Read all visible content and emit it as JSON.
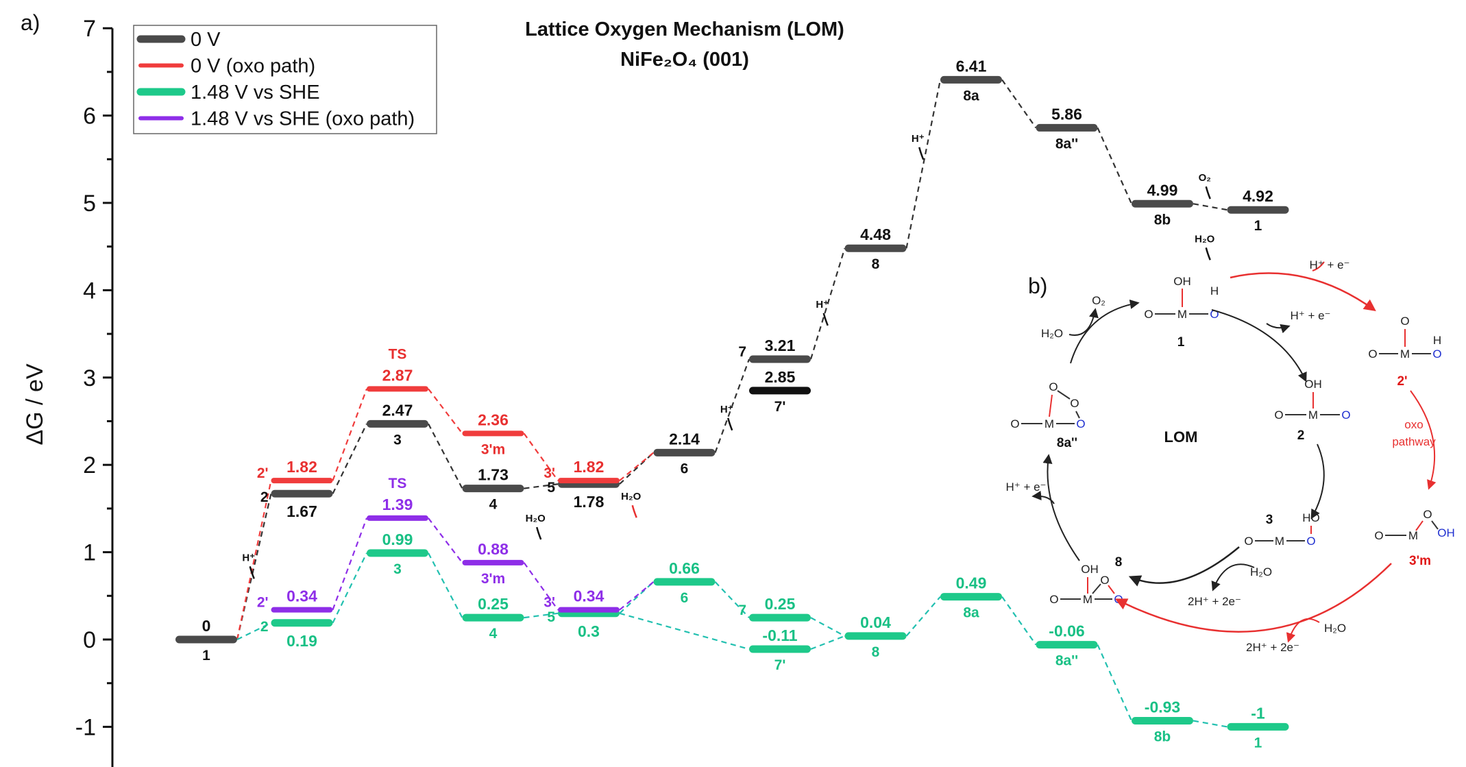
{
  "panel_labels": {
    "a": "a)",
    "b": "b)"
  },
  "chart_data": {
    "type": "line",
    "subtype": "free-energy-level-diagram",
    "title": "Lattice Oxygen Mechanism (LOM)",
    "subtitle": "NiFe₂O₄ (001)",
    "ylabel": "ΔG / eV",
    "ylim": [
      -1.4,
      7
    ],
    "yticks": [
      "-1",
      "0",
      "1",
      "2",
      "3",
      "4",
      "5",
      "6",
      "7"
    ],
    "grid": false,
    "legend_placement": "top-left",
    "legend": [
      {
        "name": "0 V",
        "color": "#4a4a4a"
      },
      {
        "name": "0 V (oxo path)",
        "color": "#f03c3c"
      },
      {
        "name": "1.48 V vs SHE",
        "color": "#1ec98a"
      },
      {
        "name": "1.48 V vs SHE (oxo path)",
        "color": "#8e2ee8"
      }
    ],
    "series": [
      {
        "name": "0 V",
        "color": "#4a4a4a",
        "text_color": "#111111",
        "levels": [
          {
            "step": 1,
            "value": 0,
            "value_text": "0",
            "state": "1",
            "style": "above"
          },
          {
            "step": 2,
            "value": 1.67,
            "value_text": "1.67",
            "state": "2",
            "style": "left-below"
          },
          {
            "step": 3,
            "value": 2.47,
            "value_text": "2.47",
            "state": "3",
            "style": "above"
          },
          {
            "step": 4,
            "value": 1.73,
            "value_text": "1.73",
            "state": "4",
            "style": "above"
          },
          {
            "step": 5,
            "value": 1.78,
            "value_text": "1.78",
            "state": "5",
            "style": "left-below"
          },
          {
            "step": 6,
            "value": 2.14,
            "value_text": "2.14",
            "state": "6",
            "style": "above"
          },
          {
            "step": 7,
            "value": 3.21,
            "value_text": "3.21",
            "state": "7",
            "style": "left-above"
          },
          {
            "step": 7,
            "value": 2.85,
            "value_text": "2.85",
            "state": "7'",
            "style": "above",
            "color": "#111111"
          },
          {
            "step": 8,
            "value": 4.48,
            "value_text": "4.48",
            "state": "8",
            "style": "above"
          },
          {
            "step": 9,
            "value": 6.41,
            "value_text": "6.41",
            "state": "8a",
            "style": "above"
          },
          {
            "step": 10,
            "value": 5.86,
            "value_text": "5.86",
            "state": "8a''",
            "style": "above"
          },
          {
            "step": 11,
            "value": 4.99,
            "value_text": "4.99",
            "state": "8b",
            "style": "above"
          },
          {
            "step": 12,
            "value": 4.92,
            "value_text": "4.92",
            "state": "1",
            "style": "above"
          }
        ],
        "links": [
          [
            0,
            1
          ],
          [
            1,
            2
          ],
          [
            2,
            3
          ],
          [
            3,
            4
          ],
          [
            4,
            5
          ],
          [
            5,
            6
          ],
          [
            6,
            8
          ],
          [
            8,
            9
          ],
          [
            9,
            10
          ],
          [
            10,
            11
          ],
          [
            11,
            12
          ]
        ]
      },
      {
        "name": "0 V (oxo path)",
        "color": "#f03c3c",
        "text_color": "#e83030",
        "levels": [
          {
            "step": 2,
            "value": 1.82,
            "value_text": "1.82",
            "state": "2'",
            "style": "left-above"
          },
          {
            "step": 3,
            "value": 2.87,
            "value_text": "2.87",
            "state": "TS",
            "style": "ts"
          },
          {
            "step": 4,
            "value": 2.36,
            "value_text": "2.36",
            "state": "3'm",
            "style": "above"
          },
          {
            "step": 5,
            "value": 1.82,
            "value_text": "1.82",
            "state": "3'",
            "style": "left-above"
          }
        ],
        "links": [
          [
            0,
            1
          ],
          [
            1,
            2
          ],
          [
            2,
            3
          ]
        ]
      },
      {
        "name": "1.48 V vs SHE",
        "color": "#1ec98a",
        "text_color": "#19c085",
        "levels": [
          {
            "step": 2,
            "value": 0.19,
            "value_text": "0.19",
            "state": "2",
            "style": "left-below"
          },
          {
            "step": 3,
            "value": 0.99,
            "value_text": "0.99",
            "state": "3",
            "style": "above"
          },
          {
            "step": 4,
            "value": 0.25,
            "value_text": "0.25",
            "state": "4",
            "style": "above"
          },
          {
            "step": 5,
            "value": 0.3,
            "value_text": "0.3",
            "state": "5",
            "style": "left-below"
          },
          {
            "step": 6,
            "value": 0.66,
            "value_text": "0.66",
            "state": "6",
            "style": "above"
          },
          {
            "step": 7,
            "value": 0.25,
            "value_text": "0.25",
            "state": "7",
            "style": "left-above"
          },
          {
            "step": 7,
            "value": -0.11,
            "value_text": "-0.11",
            "state": "7'",
            "style": "above"
          },
          {
            "step": 8,
            "value": 0.04,
            "value_text": "0.04",
            "state": "8",
            "style": "above"
          },
          {
            "step": 9,
            "value": 0.49,
            "value_text": "0.49",
            "state": "8a",
            "style": "above"
          },
          {
            "step": 10,
            "value": -0.06,
            "value_text": "-0.06",
            "state": "8a''",
            "style": "above"
          },
          {
            "step": 11,
            "value": -0.93,
            "value_text": "-0.93",
            "state": "8b",
            "style": "above"
          },
          {
            "step": 12,
            "value": -1,
            "value_text": "-1",
            "state": "1",
            "style": "above"
          }
        ],
        "links": [
          [
            0,
            1
          ],
          [
            1,
            2
          ],
          [
            2,
            3
          ],
          [
            3,
            4
          ],
          [
            4,
            5
          ],
          [
            3,
            6
          ],
          [
            5,
            7
          ],
          [
            6,
            7
          ],
          [
            7,
            8
          ],
          [
            8,
            9
          ],
          [
            9,
            10
          ],
          [
            10,
            11
          ]
        ]
      },
      {
        "name": "1.48 V vs SHE (oxo path)",
        "color": "#8e2ee8",
        "text_color": "#8e2ee8",
        "levels": [
          {
            "step": 2,
            "value": 0.34,
            "value_text": "0.34",
            "state": "2'",
            "style": "left-above"
          },
          {
            "step": 3,
            "value": 1.39,
            "value_text": "1.39",
            "state": "TS",
            "style": "ts"
          },
          {
            "step": 4,
            "value": 0.88,
            "value_text": "0.88",
            "state": "3'm",
            "style": "above"
          },
          {
            "step": 5,
            "value": 0.34,
            "value_text": "0.34",
            "state": "3'",
            "style": "left-above"
          }
        ],
        "links": [
          [
            0,
            1
          ],
          [
            1,
            2
          ],
          [
            2,
            3
          ]
        ]
      }
    ],
    "cross_links": [
      {
        "from": [
          0,
          0
        ],
        "to": [
          1,
          0
        ],
        "color": "#f03c3c"
      },
      {
        "from": [
          1,
          3
        ],
        "to": [
          0,
          5
        ],
        "color": "#f03c3c"
      },
      {
        "from": [
          0,
          0
        ],
        "to": [
          2,
          0
        ],
        "color": "#1ec98a"
      },
      {
        "from": [
          3,
          3
        ],
        "to": [
          2,
          4
        ],
        "color": "#8e2ee8"
      }
    ],
    "annotations": [
      {
        "text": "H⁺",
        "between_steps": [
          1,
          2
        ],
        "value": 0.9,
        "color": "#111111"
      },
      {
        "text": "H₂O",
        "between_steps": [
          4,
          5
        ],
        "value": 1.35,
        "color": "#111111"
      },
      {
        "text": "H₂O",
        "between_steps": [
          5,
          6
        ],
        "value": 1.6,
        "color": "#e83030"
      },
      {
        "text": "H⁺",
        "between_steps": [
          6,
          7
        ],
        "value": 2.6,
        "color": "#111111"
      },
      {
        "text": "H⁺",
        "between_steps": [
          7,
          8
        ],
        "value": 3.8,
        "color": "#111111"
      },
      {
        "text": "H⁺",
        "between_steps": [
          8,
          9
        ],
        "value": 5.7,
        "color": "#111111"
      },
      {
        "text": "O₂",
        "between_steps": [
          11,
          12
        ],
        "value": 5.25,
        "color": "#111111"
      },
      {
        "text": "H₂O",
        "between_steps": [
          11,
          12
        ],
        "value": 4.55,
        "color": "#111111"
      }
    ]
  },
  "scheme": {
    "center_label": "LOM",
    "species": {
      "s1": {
        "label": "1",
        "top": "OH",
        "h": "H"
      },
      "s2p": {
        "label": "2'",
        "top": "O",
        "h": "H"
      },
      "s2": {
        "label": "2",
        "top": "OH"
      },
      "s3": {
        "label": "3",
        "top": "HO"
      },
      "s3m": {
        "label": "3'm",
        "top": "O",
        "oh": "OH"
      },
      "s8": {
        "label": "8",
        "top": "OH",
        "mid": "O"
      },
      "s8a": {
        "label": "8a''",
        "o1": "O",
        "o2": "O"
      }
    },
    "atoms": {
      "o": "O",
      "m": "M"
    },
    "reagents": {
      "r1": "H⁺ + e⁻",
      "r2": "H⁺ + e⁻",
      "r3": "H⁺ + e⁻",
      "o2": "O₂",
      "h2o_a": "H₂O",
      "h2o_b": "H₂O",
      "h2o_c": "H₂O",
      "e2_a": "2H⁺ + 2e⁻",
      "e2_b": "2H⁺ + 2e⁻",
      "oxo1": "oxo",
      "oxo2": "pathway"
    }
  }
}
